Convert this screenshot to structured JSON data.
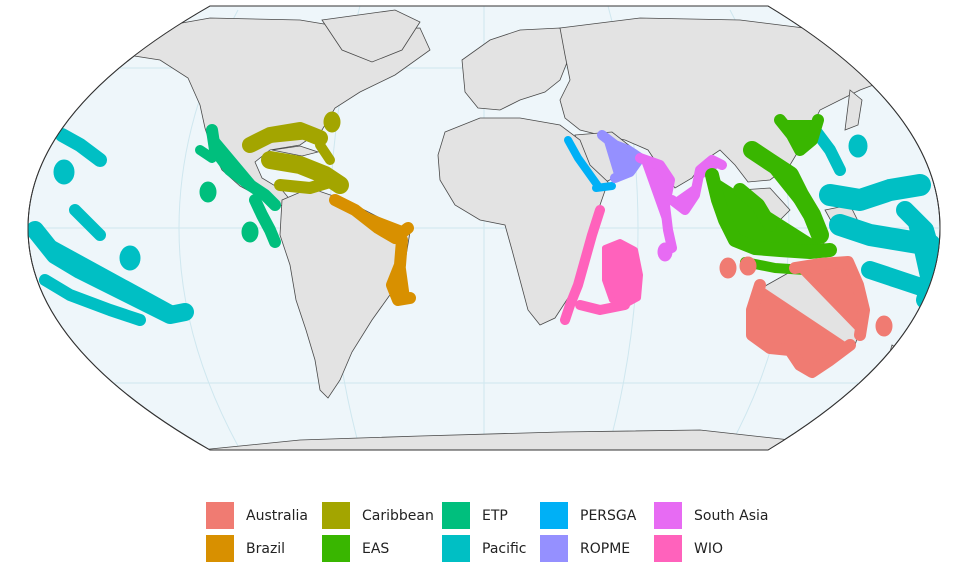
{
  "map": {
    "ocean_color": "#eef6fa",
    "land_color": "#e3e3e3",
    "border_color": "#555555",
    "graticule_color": "#cfe7ef"
  },
  "legend": {
    "items": [
      {
        "label": "Australia",
        "color": "#f07b72"
      },
      {
        "label": "Brazil",
        "color": "#d89000"
      },
      {
        "label": "Caribbean",
        "color": "#a3a500"
      },
      {
        "label": "EAS",
        "color": "#39b600"
      },
      {
        "label": "ETP",
        "color": "#00bf7d"
      },
      {
        "label": "Pacific",
        "color": "#00bfc4"
      },
      {
        "label": "PERSGA",
        "color": "#00b0f6"
      },
      {
        "label": "ROPME",
        "color": "#9590ff"
      },
      {
        "label": "South Asia",
        "color": "#e76bf3"
      },
      {
        "label": "WIO",
        "color": "#ff62bc"
      }
    ]
  }
}
